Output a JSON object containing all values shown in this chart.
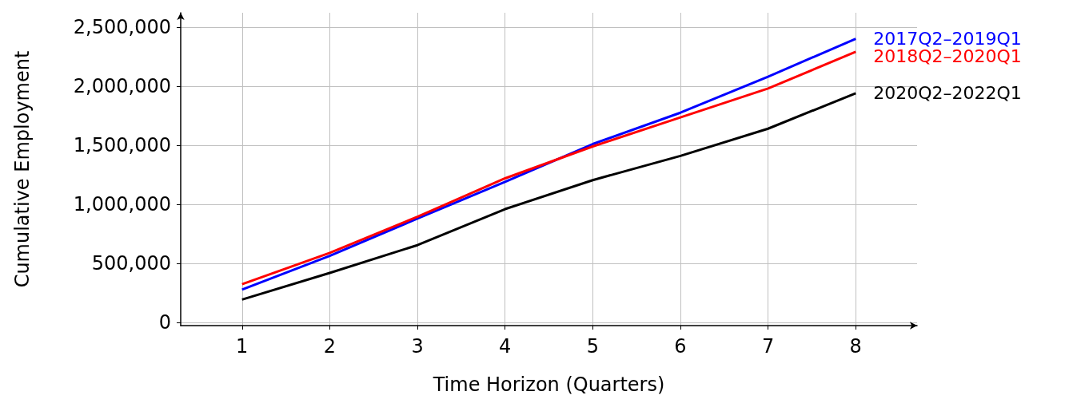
{
  "chart_data": {
    "type": "line",
    "xlabel": "Time Horizon (Quarters)",
    "ylabel": "Cumulative Employment",
    "x": [
      1,
      2,
      3,
      4,
      5,
      6,
      7,
      8
    ],
    "series": [
      {
        "name": "2017Q2–2019Q1",
        "color": "#0000ff",
        "values": [
          280000,
          565000,
          880000,
          1190000,
          1510000,
          1775000,
          2080000,
          2400000
        ]
      },
      {
        "name": "2018Q2–2020Q1",
        "color": "#ff0000",
        "values": [
          325000,
          590000,
          895000,
          1220000,
          1490000,
          1735000,
          1980000,
          2290000
        ]
      },
      {
        "name": "2020Q2–2022Q1",
        "color": "#000000",
        "values": [
          195000,
          420000,
          655000,
          960000,
          1205000,
          1410000,
          1640000,
          1940000
        ]
      }
    ],
    "xlim": [
      0.3,
      8.7
    ],
    "xticks": [
      1,
      2,
      3,
      4,
      5,
      6,
      7,
      8
    ],
    "ylim": [
      -25000,
      2620000
    ],
    "yticks": [
      0,
      {
        "value": 500000,
        "label": "500,000"
      },
      {
        "value": 1000000,
        "label": "1,000,000"
      },
      {
        "value": 1500000,
        "label": "1,500,000"
      },
      {
        "value": 2000000,
        "label": "2,000,000"
      },
      {
        "value": 2500000,
        "label": "2,500,000"
      }
    ],
    "grid": true,
    "legend": false,
    "marker": "none",
    "line_style": "solid"
  }
}
